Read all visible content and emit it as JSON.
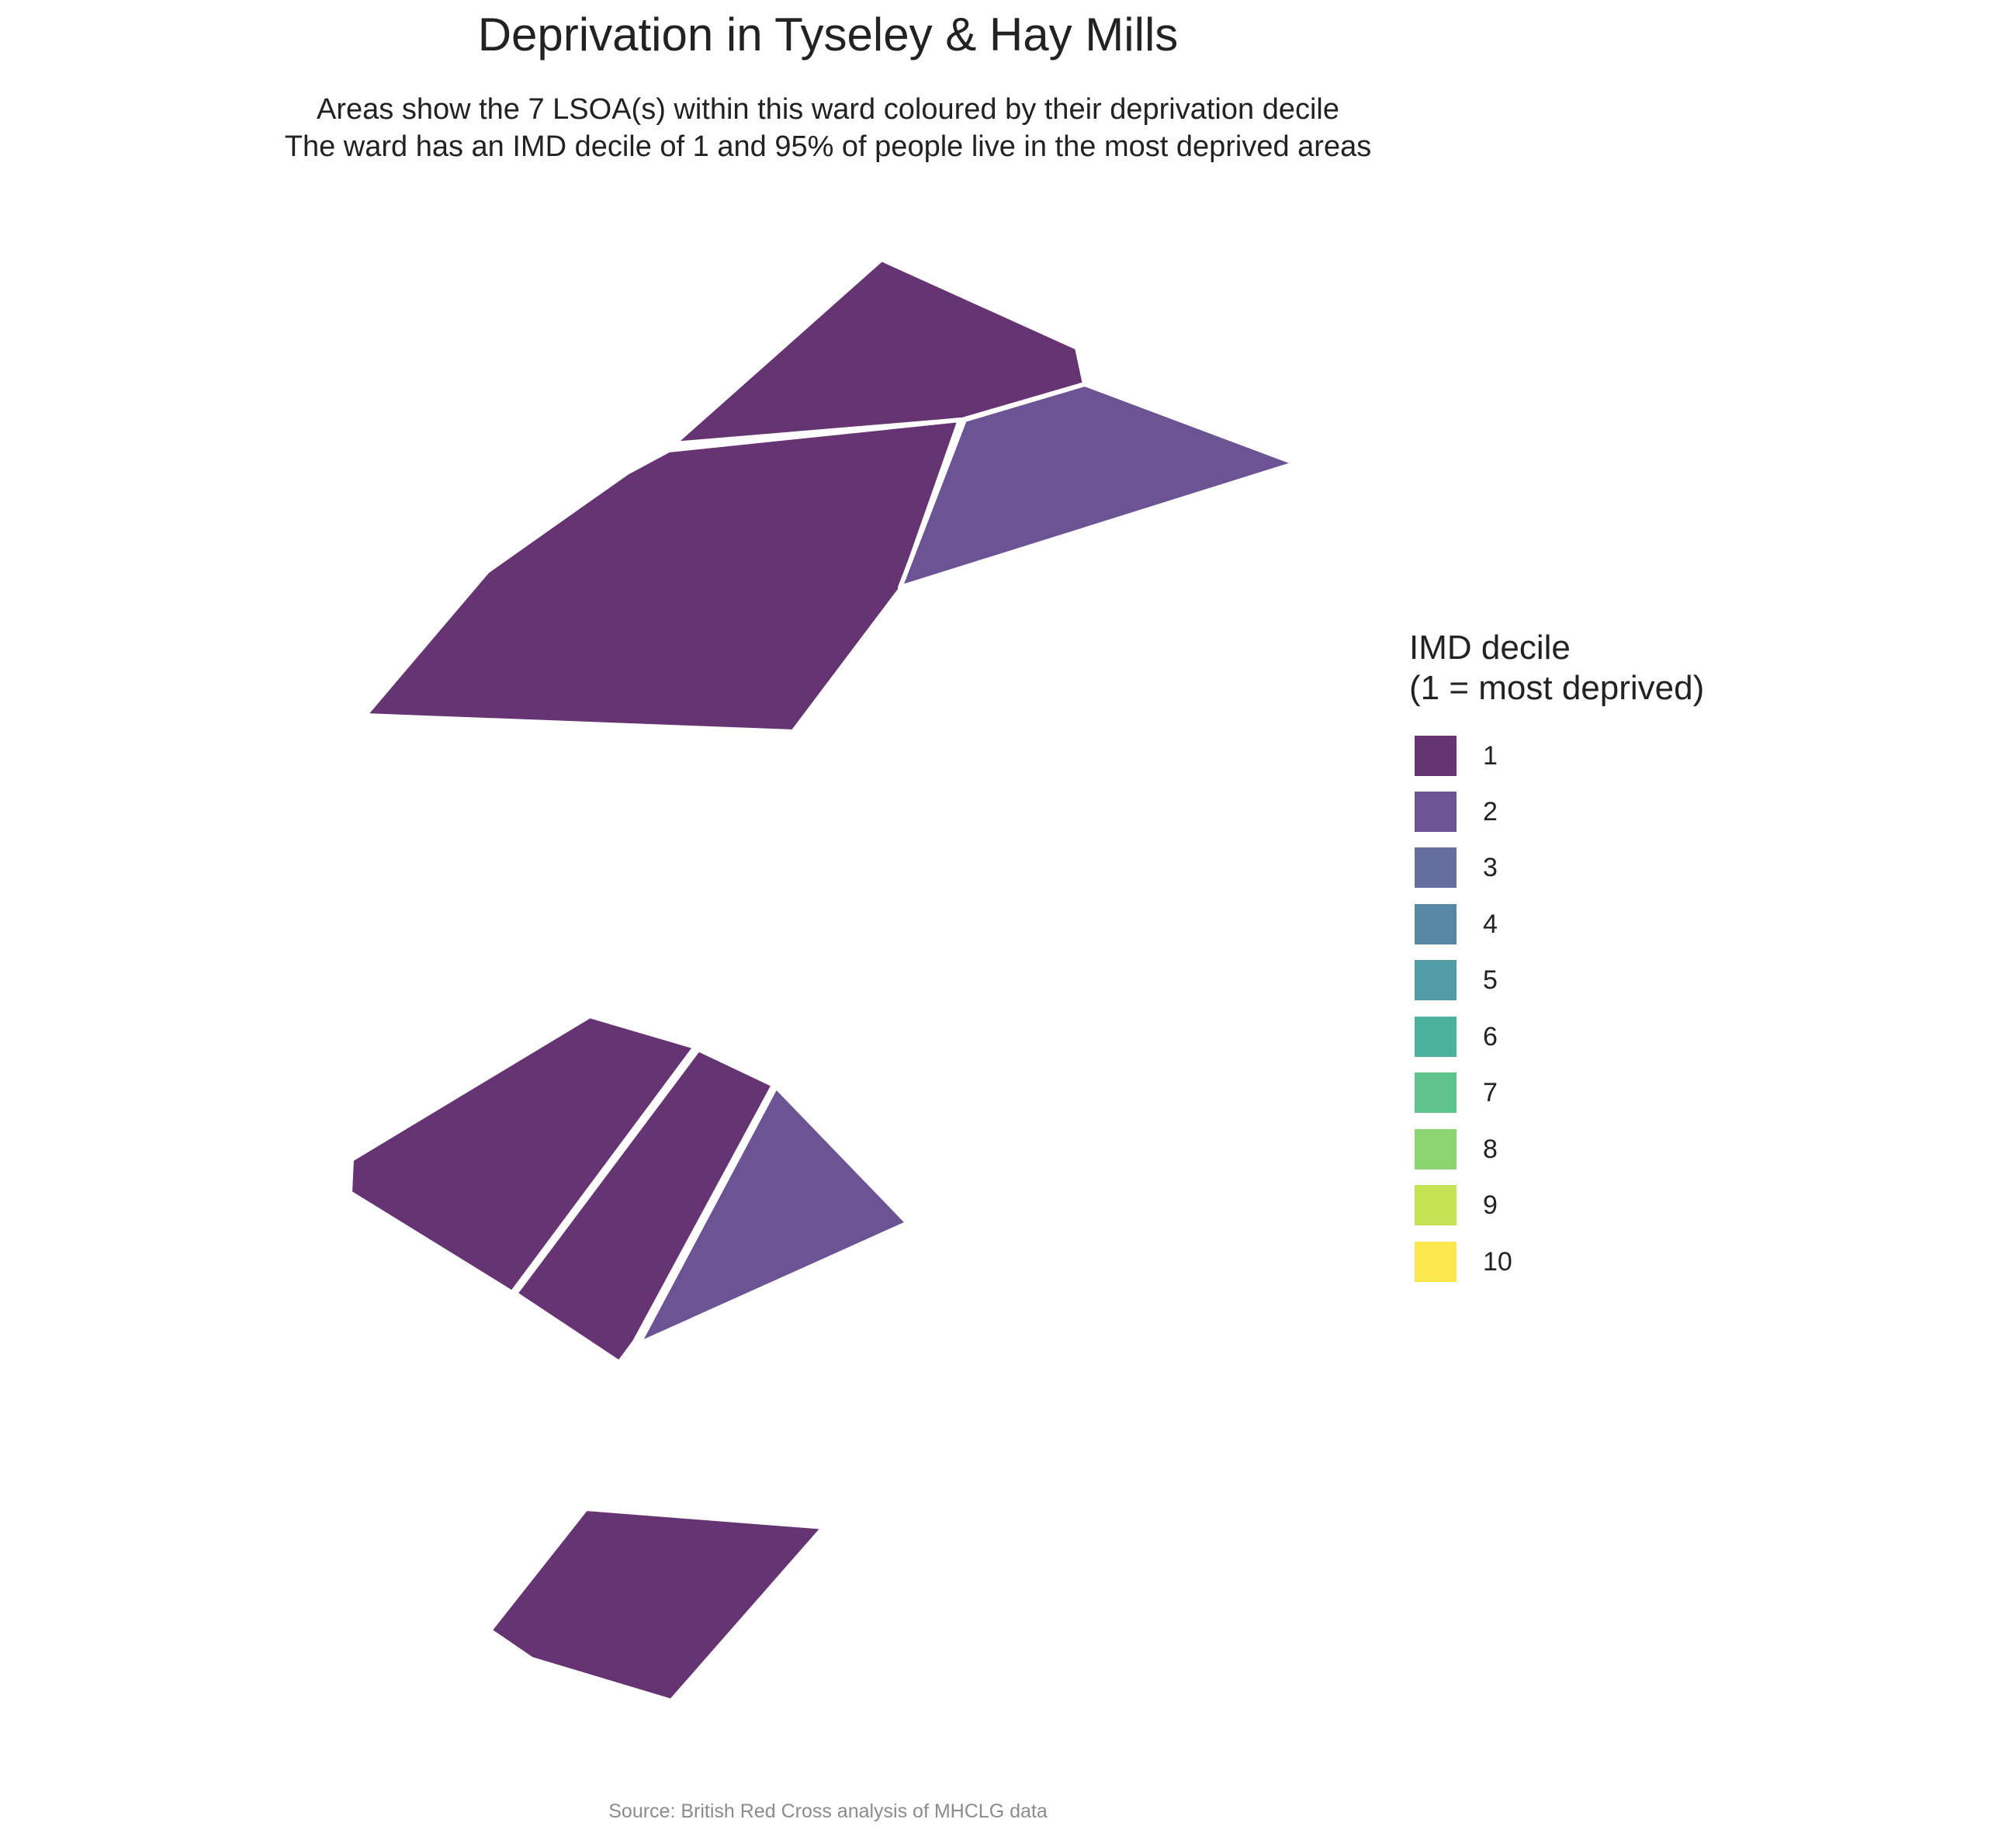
{
  "title": "Deprivation in Tyseley & Hay Mills",
  "subtitle_line1": "Areas show the 7 LSOA(s) within this ward coloured by their deprivation decile",
  "subtitle_line2": "The ward has an IMD decile of 1 and 95% of people live in the most deprived areas",
  "caption": "Source: British Red Cross analysis of MHCLG data",
  "legend": {
    "title_line1": "IMD decile",
    "title_line2": "(1 = most deprived)",
    "items": [
      {
        "label": "1",
        "color": "#673473"
      },
      {
        "label": "2",
        "color": "#6b5394"
      },
      {
        "label": "3",
        "color": "#666f9f"
      },
      {
        "label": "4",
        "color": "#5887a3"
      },
      {
        "label": "5",
        "color": "#4f9ca5"
      },
      {
        "label": "6",
        "color": "#4bb19d"
      },
      {
        "label": "7",
        "color": "#5ec48c"
      },
      {
        "label": "8",
        "color": "#8dd570"
      },
      {
        "label": "9",
        "color": "#c4e352"
      },
      {
        "label": "10",
        "color": "#fce84e"
      }
    ]
  },
  "areas": [
    {
      "decile": 1
    },
    {
      "decile": 1
    },
    {
      "decile": 2
    },
    {
      "decile": 1
    },
    {
      "decile": 1
    },
    {
      "decile": 2
    },
    {
      "decile": 1
    }
  ]
}
